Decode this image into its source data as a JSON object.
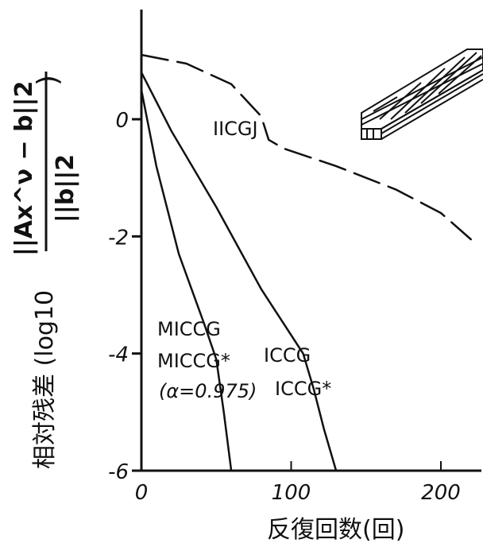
{
  "chart_data": {
    "type": "line",
    "xlabel": "反復回数(回)",
    "ylabel": "相対残差 (log10",
    "ylabel_expression": {
      "numerator": "||Ax^ν − b||2",
      "denominator": "||b||2",
      "close_paren": ")"
    },
    "xlim": [
      0,
      240
    ],
    "ylim": [
      -6,
      1.2
    ],
    "x_ticks": [
      0,
      100,
      200
    ],
    "x_tick_labels": [
      "0",
      "100",
      "200"
    ],
    "y_ticks": [
      0,
      -2,
      -4,
      -6
    ],
    "y_tick_labels": [
      "0",
      "-2",
      "-4",
      "-6"
    ],
    "grid": false,
    "legend": "none",
    "series": [
      {
        "name": "IICGJ",
        "style": "dashed",
        "x": [
          0,
          30,
          60,
          80,
          85,
          95,
          130,
          170,
          200,
          220
        ],
        "y": [
          1.1,
          0.95,
          0.6,
          0.05,
          -0.35,
          -0.5,
          -0.8,
          -1.2,
          -1.6,
          -2.05
        ]
      },
      {
        "name": "ICCG / ICCG*",
        "labels": [
          "ICCG",
          "ICCG*"
        ],
        "style": "solid",
        "x": [
          0,
          20,
          50,
          80,
          108,
          115,
          122,
          130
        ],
        "y": [
          0.8,
          -0.2,
          -1.5,
          -2.9,
          -4.0,
          -4.6,
          -5.3,
          -6.0
        ]
      },
      {
        "name": "MICCG / MICCG* (α=0.975)",
        "labels": [
          "MICCG",
          "MICCG*",
          "(α=0.975)"
        ],
        "style": "solid",
        "x": [
          0,
          10,
          25,
          42,
          50,
          55,
          60
        ],
        "y": [
          0.5,
          -0.8,
          -2.3,
          -3.5,
          -4.1,
          -5.0,
          -6.0
        ]
      }
    ],
    "colors": {
      "ink": "#111111",
      "background": "#ffffff"
    },
    "inset_icon": "layered-plate-icon"
  }
}
